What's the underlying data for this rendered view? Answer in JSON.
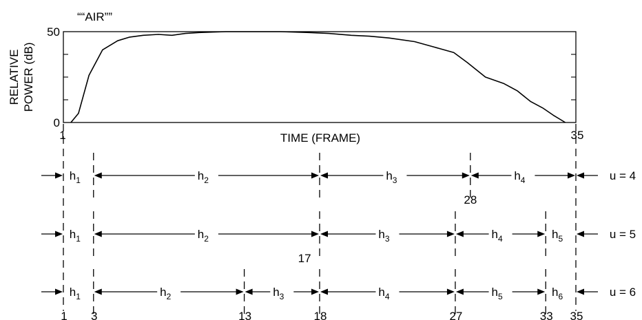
{
  "chart_data": {
    "type": "line",
    "title": "““AIR””",
    "xlabel": "TIME (FRAME)",
    "ylabel": "RELATIVE POWER (dB)",
    "ylabel_lines": [
      "RELATIVE",
      "POWER (dB)"
    ],
    "xlim": [
      1,
      35
    ],
    "ylim": [
      0,
      50
    ],
    "x_tick_labels": [
      {
        "x": 1,
        "label": "1"
      },
      {
        "x": 35,
        "label": "35"
      }
    ],
    "y_tick_labels": [
      {
        "y": 0,
        "label": "0"
      },
      {
        "y": 50,
        "label": "50"
      }
    ],
    "y_minor_ticks": [
      12.5,
      25,
      37.5
    ],
    "grid": false,
    "series": [
      {
        "points": [
          [
            1.5,
            0
          ],
          [
            2.0,
            5
          ],
          [
            2.7,
            26
          ],
          [
            3.6,
            40
          ],
          [
            4.6,
            45
          ],
          [
            5.4,
            47
          ],
          [
            6.3,
            48
          ],
          [
            7.3,
            48.5
          ],
          [
            8.2,
            48
          ],
          [
            9.1,
            49
          ],
          [
            10.0,
            49.5
          ],
          [
            11.8,
            50
          ],
          [
            15.4,
            50
          ],
          [
            17.3,
            49.5
          ],
          [
            18.6,
            49
          ],
          [
            20.1,
            48
          ],
          [
            21.3,
            47.5
          ],
          [
            22.6,
            46.5
          ],
          [
            24.3,
            44.5
          ],
          [
            25.6,
            41.5
          ],
          [
            26.9,
            38.5
          ],
          [
            27.8,
            33
          ],
          [
            29.0,
            25
          ],
          [
            30.2,
            21.5
          ],
          [
            31.1,
            17.5
          ],
          [
            32.0,
            11.5
          ],
          [
            32.8,
            8
          ],
          [
            33.5,
            4
          ],
          [
            34.3,
            0
          ]
        ]
      }
    ],
    "segmentations": [
      {
        "label": "u = 4",
        "boundaries": [
          1,
          3,
          18,
          28,
          35
        ],
        "segments": [
          {
            "letter": "h",
            "sub": "1"
          },
          {
            "letter": "h",
            "sub": "2"
          },
          {
            "letter": "h",
            "sub": "3"
          },
          {
            "letter": "h",
            "sub": "4"
          }
        ],
        "marked": [
          {
            "x": 28,
            "label": "28"
          }
        ]
      },
      {
        "label": "u = 5",
        "boundaries": [
          1,
          3,
          18,
          27,
          33,
          35
        ],
        "segments": [
          {
            "letter": "h",
            "sub": "1"
          },
          {
            "letter": "h",
            "sub": "2"
          },
          {
            "letter": "h",
            "sub": "3"
          },
          {
            "letter": "h",
            "sub": "4"
          },
          {
            "letter": "h",
            "sub": "5"
          }
        ],
        "marked": [
          {
            "x": 17,
            "label": "17"
          }
        ]
      },
      {
        "label": "u = 6",
        "boundaries": [
          1,
          3,
          13,
          18,
          27,
          33,
          35
        ],
        "segments": [
          {
            "letter": "h",
            "sub": "1"
          },
          {
            "letter": "h",
            "sub": "2"
          },
          {
            "letter": "h",
            "sub": "3"
          },
          {
            "letter": "h",
            "sub": "4"
          },
          {
            "letter": "h",
            "sub": "5"
          },
          {
            "letter": "h",
            "sub": "6"
          }
        ],
        "marked": [
          {
            "x": 1,
            "label": "1"
          },
          {
            "x": 3,
            "label": "3"
          },
          {
            "x": 13,
            "label": "13"
          },
          {
            "x": 18,
            "label": "18"
          },
          {
            "x": 27,
            "label": "27"
          },
          {
            "x": 33,
            "label": "33"
          },
          {
            "x": 35,
            "label": "35"
          }
        ]
      }
    ]
  }
}
